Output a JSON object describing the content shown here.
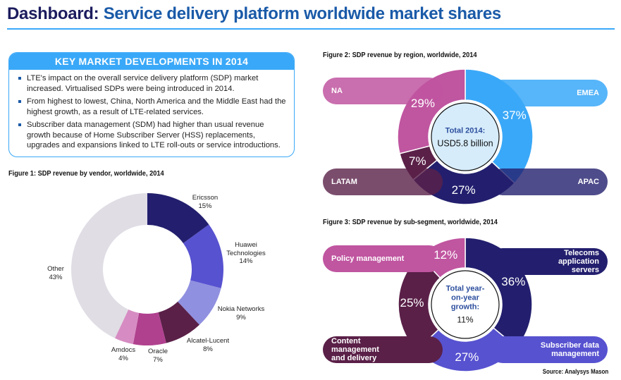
{
  "header": {
    "title_lead": "Dashboard:",
    "title_rest": " Service delivery platform worldwide market shares"
  },
  "key_developments": {
    "heading": "KEY MARKET DEVELOPMENTS IN 2014",
    "bullets": [
      "LTE's impact on the overall service delivery platform (SDP) market increased. Virtualised SDPs were being introduced in 2014.",
      "From highest to lowest, China, North America and the Middle East had the highest growth, as a result of LTE-related services.",
      "Subscriber data management (SDM) had higher than usual revenue growth because of Home Subscriber Server (HSS) replacements, upgrades and expansions linked to LTE roll-outs or service introductions."
    ]
  },
  "chart_data": [
    {
      "type": "pie",
      "title": "Figure 1: SDP revenue by vendor, worldwide, 2014",
      "categories": [
        "Ericsson",
        "Huawei Technologies",
        "Nokia Networks",
        "Alcatel-Lucent",
        "Oracle",
        "Amdocs",
        "Other"
      ],
      "values": [
        15,
        14,
        9,
        8,
        7,
        4,
        43
      ],
      "labels": [
        "15%",
        "14%",
        "9%",
        "8%",
        "7%",
        "4%",
        "43%"
      ],
      "colors": [
        "#231f6e",
        "#5752d0",
        "#9090e0",
        "#5a2048",
        "#b0418f",
        "#d68cc2",
        "#e0dde5"
      ]
    },
    {
      "type": "pie",
      "title": "Figure 2: SDP revenue by region, worldwide, 2014",
      "categories": [
        "EMEA",
        "APAC",
        "LATAM",
        "NA"
      ],
      "values": [
        37,
        27,
        7,
        29
      ],
      "labels": [
        "37%",
        "27%",
        "7%",
        "29%"
      ],
      "colors": [
        "#3aa8f8",
        "#231f6e",
        "#5a2048",
        "#c055a0"
      ],
      "center_heading": "Total 2014:",
      "center_value": "USD5.8 billion"
    },
    {
      "type": "pie",
      "title": "Figure 3: SDP revenue by sub-segment, worldwide, 2014",
      "categories": [
        "Telecoms application servers",
        "Subscriber data management",
        "Content management and delivery",
        "Policy management"
      ],
      "values": [
        36,
        27,
        25,
        12
      ],
      "labels": [
        "36%",
        "27%",
        "25%",
        "12%"
      ],
      "colors": [
        "#231f6e",
        "#5752d0",
        "#5a2048",
        "#c055a0"
      ],
      "center_heading": "Total year-on-year growth:",
      "center_value": "11%"
    }
  ],
  "source": "Source: Analysys Mason"
}
